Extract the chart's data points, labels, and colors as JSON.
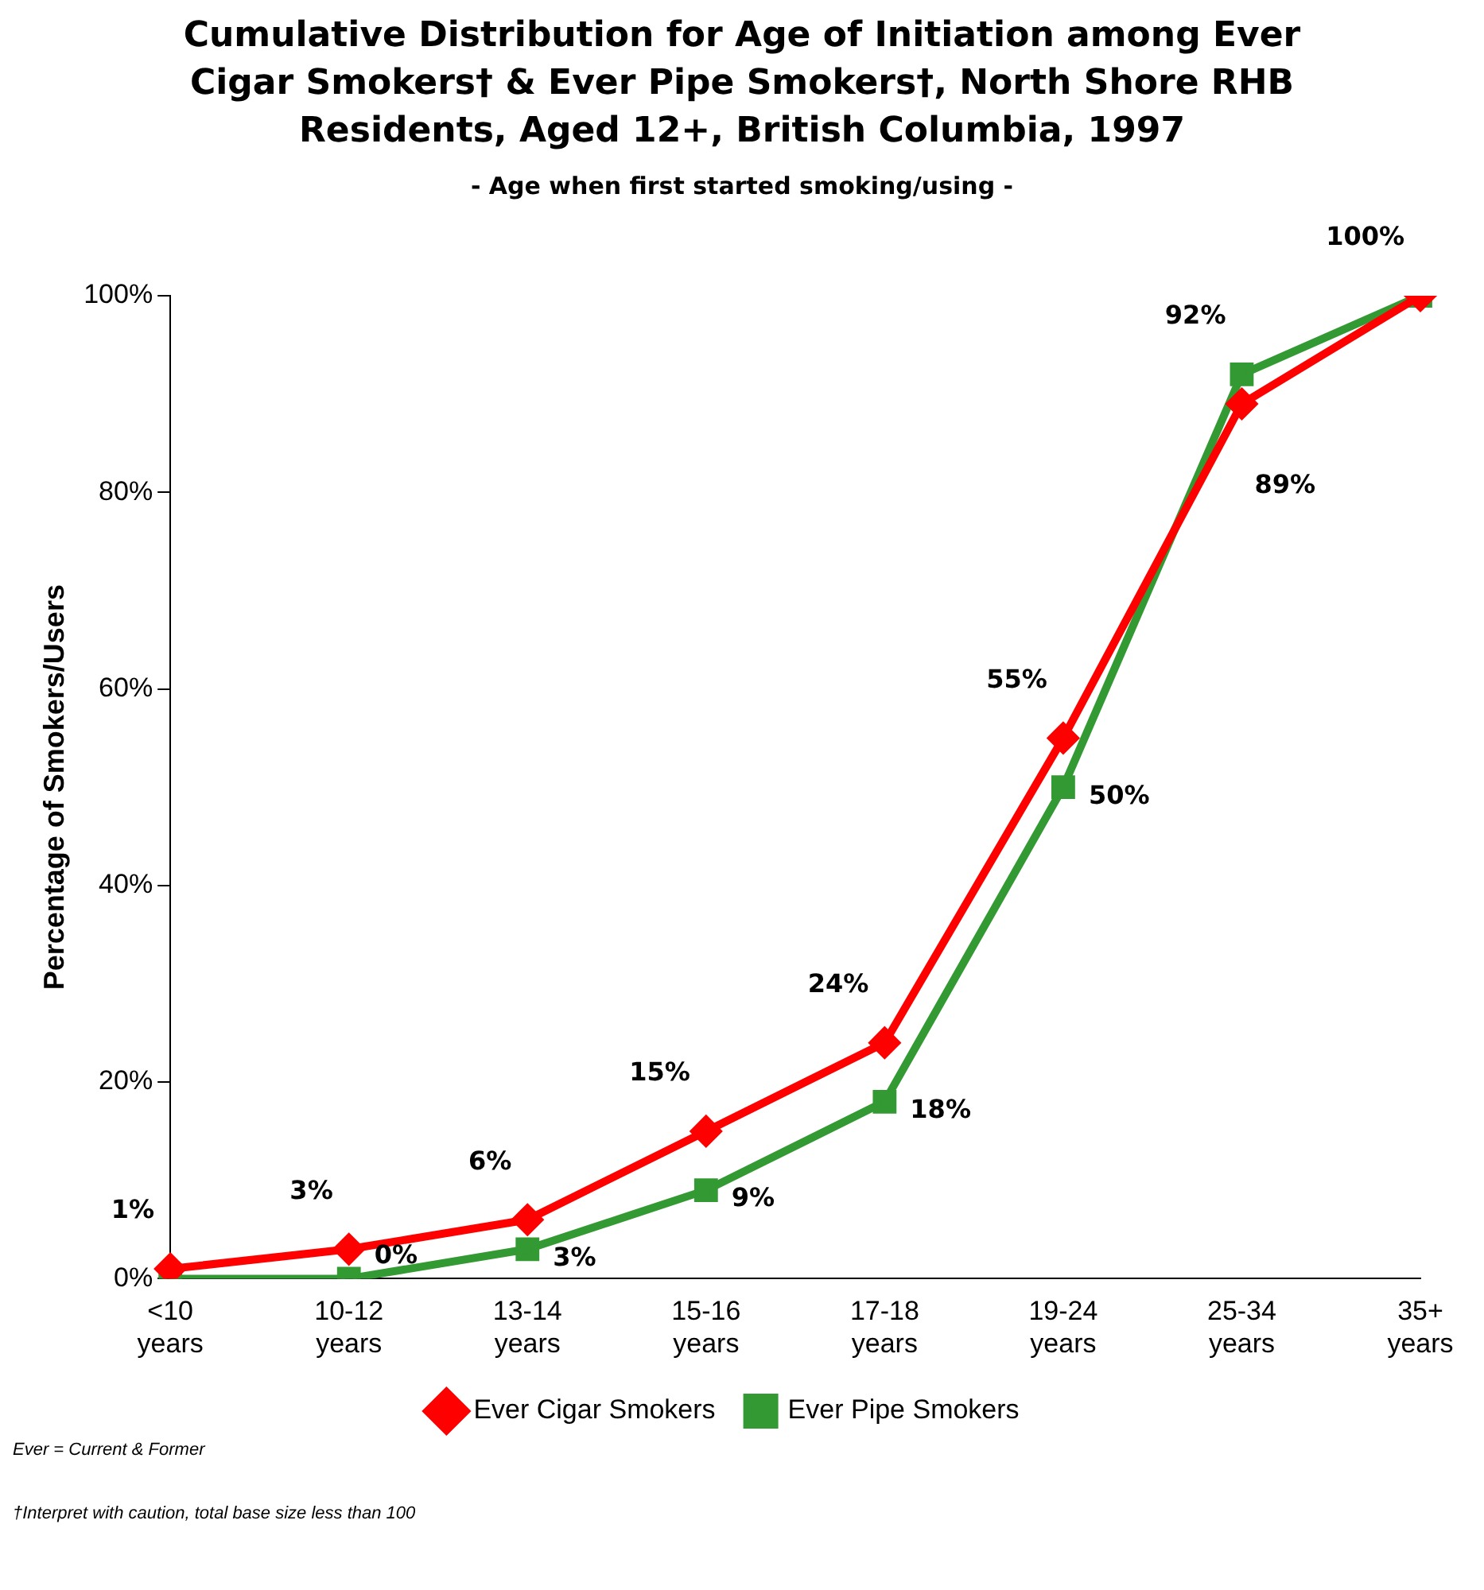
{
  "chart_data": {
    "type": "line",
    "title": "Cumulative Distribution for Age of Initiation among Ever Cigar Smokers† & Ever Pipe Smokers†, North Shore RHB Residents, Aged 12+, British Columbia, 1997",
    "subtitle": "- Age when first started smoking/using -",
    "ylabel": "Percentage of Smokers/Users",
    "categories": [
      "<10 years",
      "10-12 years",
      "13-14 years",
      "15-16 years",
      "17-18 years",
      "19-24 years",
      "25-34 years",
      "35+ years"
    ],
    "series": [
      {
        "name": "Ever Cigar Smokers",
        "color": "#ff0000",
        "marker": "diamond",
        "values": [
          1,
          3,
          6,
          15,
          24,
          55,
          89,
          100
        ],
        "value_labels": [
          "1%",
          "3%",
          "6%",
          "15%",
          "24%",
          "55%",
          "89%",
          null
        ]
      },
      {
        "name": "Ever Pipe Smokers",
        "color": "#339933",
        "marker": "square",
        "values": [
          0,
          0,
          3,
          9,
          18,
          50,
          92,
          100
        ],
        "value_labels": [
          null,
          "0%",
          "3%",
          "9%",
          "18%",
          "50%",
          "92%",
          "100%"
        ]
      }
    ],
    "ylim": [
      0,
      100
    ],
    "yticks": [
      {
        "value": 0,
        "label": "0%"
      },
      {
        "value": 20,
        "label": "20%"
      },
      {
        "value": 40,
        "label": "40%"
      },
      {
        "value": 60,
        "label": "60%"
      },
      {
        "value": 80,
        "label": "80%"
      },
      {
        "value": 100,
        "label": "100%"
      }
    ],
    "grid": false,
    "legend": "bottom",
    "annotations": [
      "Ever = Current & Former",
      "†Interpret with caution, total base size less than 100"
    ]
  }
}
